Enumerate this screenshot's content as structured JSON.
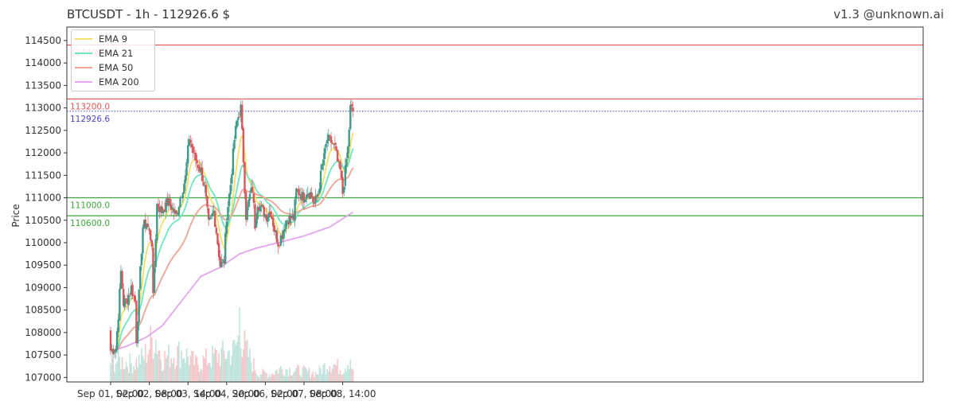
{
  "header": {
    "title": "BTCUSDT - 1h - 112926.6 $",
    "version": "v1.3 @unknown.ai"
  },
  "chart_data": {
    "type": "candlestick",
    "title": "BTCUSDT - 1h - 112926.6 $",
    "ylabel": "Price",
    "ylim": [
      106900,
      114800
    ],
    "yticks": [
      107000,
      107500,
      108000,
      108500,
      109000,
      109500,
      110000,
      110500,
      111000,
      111500,
      112000,
      112500,
      113000,
      113500,
      114000,
      114500
    ],
    "xticks": [
      {
        "label": "Sep 01, 02:00",
        "index": 0
      },
      {
        "label": "Sep 02, 08:00",
        "index": 30
      },
      {
        "label": "Sep 03, 14:00",
        "index": 60
      },
      {
        "label": "Sep 04, 20:00",
        "index": 90
      },
      {
        "label": "Sep 06, 02:00",
        "index": 120
      },
      {
        "label": "Sep 07, 08:00",
        "index": 150
      },
      {
        "label": "Sep 08, 14:00",
        "index": 180
      }
    ],
    "grid": false,
    "legend_position": "top-left",
    "candle_count": 200,
    "close_path": [
      [
        0,
        107600
      ],
      [
        4,
        107650
      ],
      [
        6,
        108400
      ],
      [
        8,
        109350
      ],
      [
        10,
        108650
      ],
      [
        13,
        108750
      ],
      [
        16,
        109000
      ],
      [
        19,
        108700
      ],
      [
        20,
        107850
      ],
      [
        22,
        108850
      ],
      [
        25,
        110350
      ],
      [
        28,
        110450
      ],
      [
        32,
        110000
      ],
      [
        33,
        108750
      ],
      [
        36,
        110850
      ],
      [
        40,
        110700
      ],
      [
        44,
        110900
      ],
      [
        47,
        110800
      ],
      [
        51,
        110600
      ],
      [
        54,
        111000
      ],
      [
        58,
        111450
      ],
      [
        61,
        112350
      ],
      [
        65,
        111900
      ],
      [
        70,
        111600
      ],
      [
        73,
        111200
      ],
      [
        76,
        110400
      ],
      [
        80,
        110700
      ],
      [
        82,
        110250
      ],
      [
        85,
        109500
      ],
      [
        88,
        109600
      ],
      [
        90,
        110600
      ],
      [
        93,
        111300
      ],
      [
        96,
        112300
      ],
      [
        98,
        112700
      ],
      [
        101,
        113000
      ],
      [
        103,
        111850
      ],
      [
        105,
        110600
      ],
      [
        108,
        111050
      ],
      [
        110,
        111200
      ],
      [
        112,
        110400
      ],
      [
        114,
        110900
      ],
      [
        117,
        110750
      ],
      [
        121,
        110600
      ],
      [
        124,
        110700
      ],
      [
        127,
        110300
      ],
      [
        130,
        110000
      ],
      [
        133,
        110200
      ],
      [
        136,
        110500
      ],
      [
        139,
        110550
      ],
      [
        142,
        110550
      ],
      [
        144,
        111150
      ],
      [
        147,
        111100
      ],
      [
        150,
        111000
      ],
      [
        152,
        111150
      ],
      [
        155,
        111100
      ],
      [
        158,
        110850
      ],
      [
        161,
        111100
      ],
      [
        164,
        111700
      ],
      [
        166,
        112000
      ],
      [
        168,
        112300
      ],
      [
        171,
        112250
      ],
      [
        174,
        112100
      ],
      [
        176,
        111800
      ],
      [
        178,
        111600
      ],
      [
        180,
        111100
      ],
      [
        182,
        111600
      ],
      [
        184,
        112100
      ],
      [
        186,
        113000
      ],
      [
        187,
        112960
      ],
      [
        188,
        112926.6
      ]
    ],
    "volume_profile": [
      [
        0,
        1100
      ],
      [
        6,
        1200
      ],
      [
        18,
        1000
      ],
      [
        26,
        1400
      ],
      [
        34,
        2600
      ],
      [
        40,
        1300
      ],
      [
        56,
        1700
      ],
      [
        66,
        1000
      ],
      [
        80,
        1400
      ],
      [
        95,
        1700
      ],
      [
        99,
        2300
      ],
      [
        100,
        4800
      ],
      [
        102,
        2300
      ],
      [
        106,
        1600
      ],
      [
        114,
        500
      ],
      [
        124,
        450
      ],
      [
        132,
        750
      ],
      [
        144,
        650
      ],
      [
        160,
        500
      ],
      [
        170,
        1100
      ],
      [
        180,
        700
      ],
      [
        186,
        1400
      ],
      [
        188,
        500
      ]
    ],
    "volume_max": 4800,
    "series": [
      {
        "name": "EMA 9",
        "color": "#f3e06a",
        "period": 9
      },
      {
        "name": "EMA 21",
        "color": "#6ee7c0",
        "period": 21
      },
      {
        "name": "EMA 50",
        "color": "#eea596",
        "period": 50
      },
      {
        "name": "EMA 200",
        "color": "#e3a6ee",
        "period": 200
      }
    ],
    "ema200_path": [
      [
        0,
        107580
      ],
      [
        13,
        107700
      ],
      [
        28,
        107900
      ],
      [
        40,
        108150
      ],
      [
        55,
        108700
      ],
      [
        70,
        109250
      ],
      [
        85,
        109450
      ],
      [
        100,
        109750
      ],
      [
        112,
        109870
      ],
      [
        130,
        110000
      ],
      [
        150,
        110150
      ],
      [
        170,
        110350
      ],
      [
        188,
        110680
      ]
    ],
    "horizontal_levels": [
      {
        "value": 114400,
        "color": "#e05555",
        "style": "solid",
        "label": "114400.0"
      },
      {
        "value": 113200,
        "color": "#e05555",
        "style": "solid",
        "label": "113200.0"
      },
      {
        "value": 112926.6,
        "color": "#4848c8",
        "style": "dotted",
        "label": "112926.6"
      },
      {
        "value": 111000,
        "color": "#3aa83a",
        "style": "solid",
        "label": "111000.0"
      },
      {
        "value": 110600,
        "color": "#3aa83a",
        "style": "solid",
        "label": "110600.0"
      }
    ],
    "colors": {
      "up": "#3e9a8a",
      "down": "#d9565a",
      "volume_up": "#bfe4dc",
      "volume_down": "#f5c7c9"
    }
  }
}
